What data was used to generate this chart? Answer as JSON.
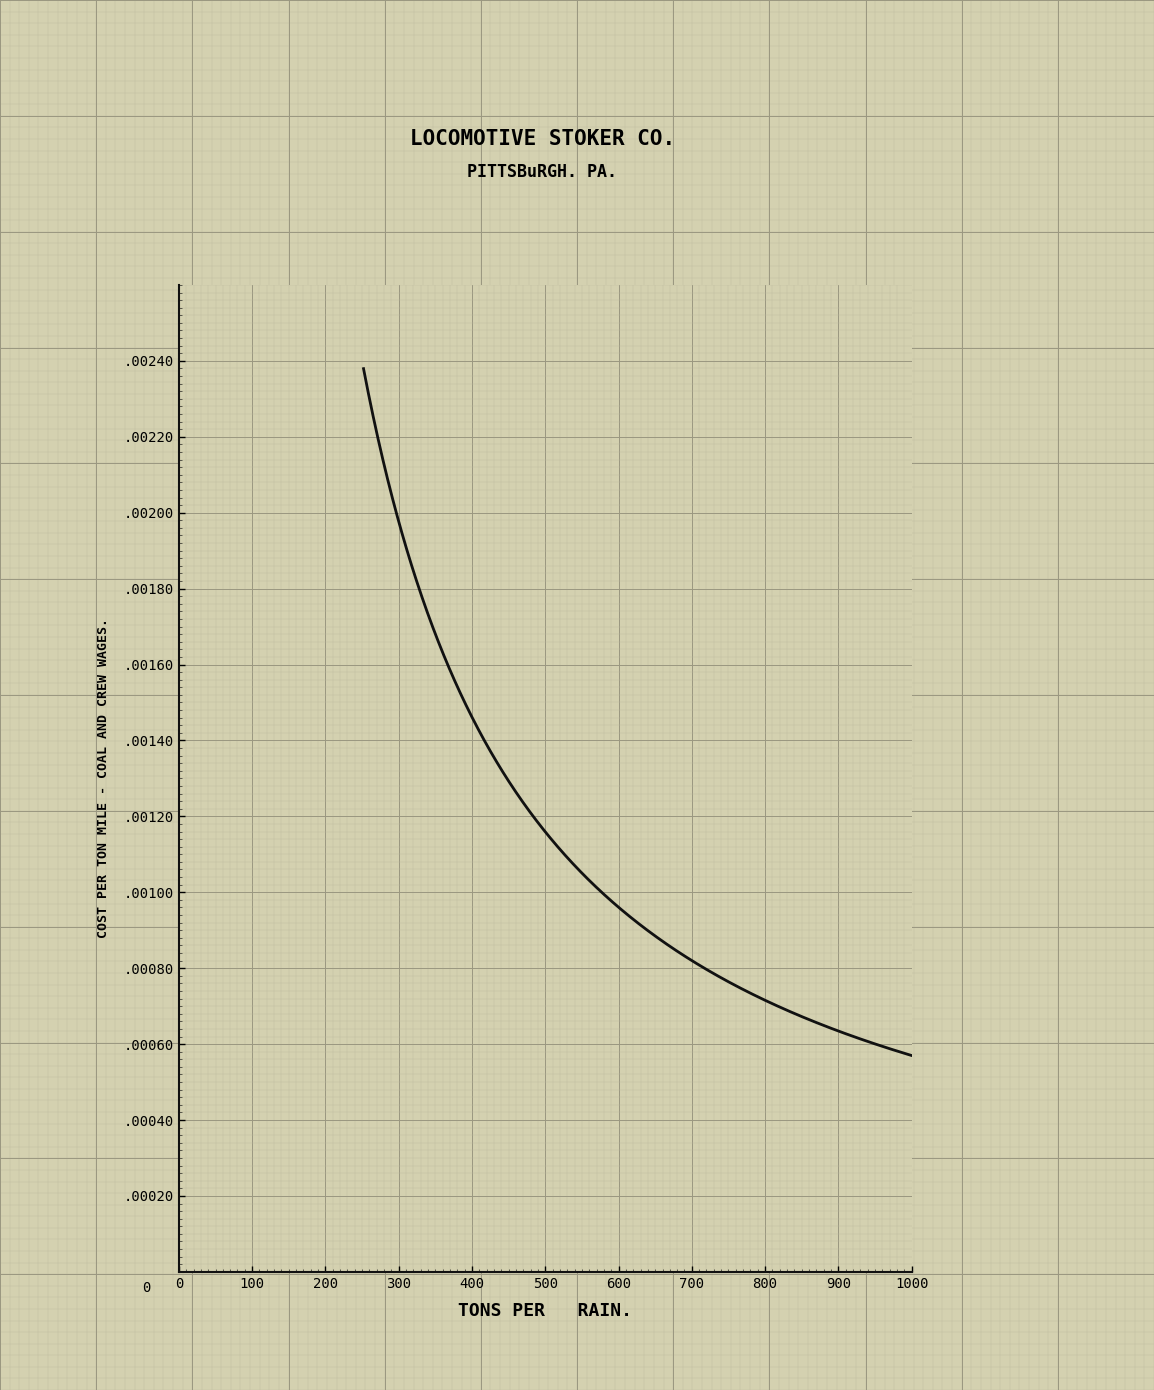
{
  "title_line1": "LOCOMOTIVE STOKER CO.",
  "title_line2": "PITTSBuRGH. PA.",
  "xlabel": "TONS PER  RAIN.",
  "ylabel": "COST PER TON MILE - COAL AND CREW WAGES.",
  "bg_color": "#d4d1b0",
  "grid_minor_color": "#bab79e",
  "grid_major_color": "#9a9780",
  "line_color": "#111111",
  "axis_color": "#111111",
  "xlim": [
    0,
    1000
  ],
  "ylim": [
    0,
    0.0026
  ],
  "xticks": [
    0,
    100,
    200,
    300,
    400,
    500,
    600,
    700,
    800,
    900,
    1000
  ],
  "ytick_vals": [
    0.0002,
    0.0004,
    0.0006,
    0.0008,
    0.001,
    0.0012,
    0.0014,
    0.0016,
    0.0018,
    0.002,
    0.0022,
    0.0024
  ],
  "ytick_labels": [
    ".00020",
    ".00040",
    ".00060",
    ".00080",
    ".00100",
    ".00120",
    ".00140",
    ".00160",
    ".00180",
    ".00200",
    ".00220",
    ".00240"
  ],
  "figsize": [
    11.54,
    13.9
  ],
  "dpi": 100
}
